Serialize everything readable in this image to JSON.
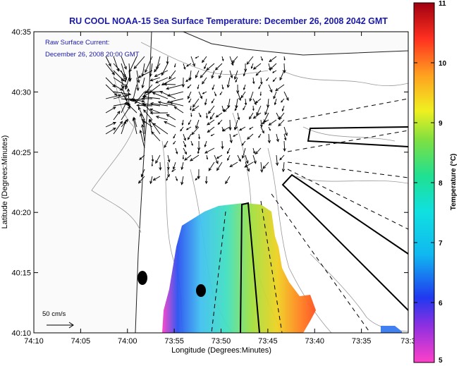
{
  "title": "RU COOL  NOAA-15  Sea Surface Temperature:  December 26, 2008 2042 GMT",
  "overlay": {
    "line1": "Raw Surface Current:",
    "line2": "December 26, 2008 20:00 GMT"
  },
  "axes": {
    "xlabel": "Longitude (Degrees:Minutes)",
    "ylabel": "Latitude (Degrees:Minutes)",
    "xticks": [
      "74:10",
      "74:05",
      "74:00",
      "73:55",
      "73:50",
      "73:45",
      "73:40",
      "73:35",
      "73:3"
    ],
    "yticks": [
      "40:35",
      "40:30",
      "40:25",
      "40:20",
      "40:15",
      "40:10"
    ]
  },
  "scale_label": "50 cm/s",
  "colorbar": {
    "label": "Temperature (°C)",
    "ticks": [
      "11",
      "10",
      "9",
      "8",
      "7",
      "6",
      "5"
    ],
    "min": 5,
    "max": 11
  },
  "colors": {
    "title": "#1a1aa8",
    "overlay": "#1a1aa8",
    "land": "#fafafa",
    "contour": "#9a9a9a"
  }
}
